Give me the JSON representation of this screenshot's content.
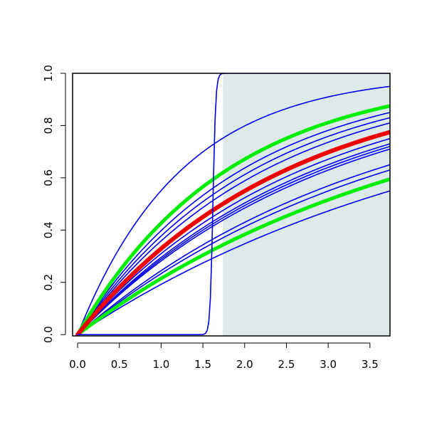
{
  "chart_data": {
    "type": "line",
    "title": "",
    "xlabel": "",
    "ylabel": "",
    "xlim": [
      -0.06,
      3.74
    ],
    "ylim": [
      -0.005,
      1.0
    ],
    "x_ticks": [
      0.0,
      0.5,
      1.0,
      1.5,
      2.0,
      2.5,
      3.0,
      3.5
    ],
    "x_tick_labels": [
      "0.0",
      "0.5",
      "1.0",
      "1.5",
      "2.0",
      "2.5",
      "3.0",
      "3.5"
    ],
    "y_ticks": [
      0.0,
      0.2,
      0.4,
      0.6,
      0.8,
      1.0
    ],
    "y_tick_labels": [
      "0.0",
      "0.2",
      "0.4",
      "0.6",
      "0.8",
      "1.0"
    ],
    "grid": false,
    "shaded_region": {
      "x_start": 1.74,
      "x_end": 3.74,
      "y_start": -0.005,
      "y_end": 1.0,
      "color": "#dde9ea"
    },
    "step_curve": {
      "color": "#0000ee",
      "midpoint": 1.62,
      "steepness": 60
    },
    "series": [
      {
        "color": "#0000ee",
        "role": "thin",
        "end_value": 0.95
      },
      {
        "color": "#0000ee",
        "role": "thin",
        "end_value": 0.85
      },
      {
        "color": "#0000ee",
        "role": "thin",
        "end_value": 0.83
      },
      {
        "color": "#0000ee",
        "role": "thin",
        "end_value": 0.81
      },
      {
        "color": "#0000ee",
        "role": "thin",
        "end_value": 0.75
      },
      {
        "color": "#0000ee",
        "role": "thin",
        "end_value": 0.73
      },
      {
        "color": "#0000ee",
        "role": "thin",
        "end_value": 0.72
      },
      {
        "color": "#0000ee",
        "role": "thin",
        "end_value": 0.71
      },
      {
        "color": "#0000ee",
        "role": "thin",
        "end_value": 0.65
      },
      {
        "color": "#0000ee",
        "role": "thin",
        "end_value": 0.63
      },
      {
        "color": "#0000ee",
        "role": "thin",
        "end_value": 0.55
      },
      {
        "color": "#00ee00",
        "role": "band",
        "end_value": 0.875
      },
      {
        "color": "#00ee00",
        "role": "band",
        "end_value": 0.595
      },
      {
        "color": "#ee0000",
        "role": "center",
        "end_value": 0.775
      }
    ]
  }
}
